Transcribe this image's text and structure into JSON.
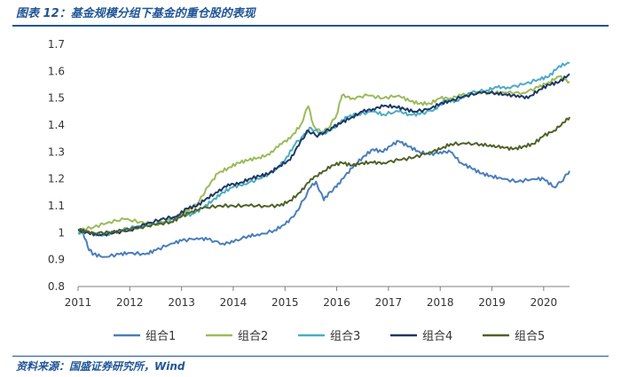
{
  "header": {
    "title": "图表 12：基金规模分组下基金的重仓股的表现"
  },
  "footer": {
    "source": "资料来源：国盛证券研究所，Wind"
  },
  "chart_data": {
    "type": "line",
    "title": "",
    "xlabel": "",
    "ylabel": "",
    "x_ticks": [
      "2011",
      "2012",
      "2013",
      "2014",
      "2015",
      "2016",
      "2017",
      "2018",
      "2019",
      "2020"
    ],
    "y_ticks": [
      "0.8",
      "0.9",
      "1",
      "1.1",
      "1.2",
      "1.3",
      "1.4",
      "1.5",
      "1.6",
      "1.7"
    ],
    "ylim": [
      0.8,
      1.7
    ],
    "xlim": [
      2011.0,
      2020.5
    ],
    "grid": false,
    "legend_position": "bottom",
    "series": [
      {
        "name": "组合1",
        "color": "#4a7ebb",
        "points": [
          [
            2011.0,
            1.01
          ],
          [
            2011.1,
            1.0
          ],
          [
            2011.2,
            0.94
          ],
          [
            2011.3,
            0.92
          ],
          [
            2011.5,
            0.91
          ],
          [
            2011.8,
            0.92
          ],
          [
            2012.0,
            0.925
          ],
          [
            2012.3,
            0.92
          ],
          [
            2012.5,
            0.935
          ],
          [
            2012.8,
            0.96
          ],
          [
            2013.0,
            0.97
          ],
          [
            2013.3,
            0.98
          ],
          [
            2013.5,
            0.975
          ],
          [
            2013.8,
            0.96
          ],
          [
            2014.0,
            0.965
          ],
          [
            2014.3,
            0.99
          ],
          [
            2014.5,
            0.99
          ],
          [
            2014.8,
            1.01
          ],
          [
            2015.0,
            1.03
          ],
          [
            2015.2,
            1.07
          ],
          [
            2015.35,
            1.12
          ],
          [
            2015.5,
            1.17
          ],
          [
            2015.6,
            1.19
          ],
          [
            2015.75,
            1.12
          ],
          [
            2015.85,
            1.15
          ],
          [
            2016.0,
            1.17
          ],
          [
            2016.1,
            1.2
          ],
          [
            2016.3,
            1.24
          ],
          [
            2016.5,
            1.28
          ],
          [
            2016.7,
            1.31
          ],
          [
            2016.9,
            1.3
          ],
          [
            2017.0,
            1.32
          ],
          [
            2017.2,
            1.34
          ],
          [
            2017.4,
            1.32
          ],
          [
            2017.6,
            1.3
          ],
          [
            2017.8,
            1.29
          ],
          [
            2018.0,
            1.3
          ],
          [
            2018.2,
            1.3
          ],
          [
            2018.4,
            1.26
          ],
          [
            2018.6,
            1.24
          ],
          [
            2018.8,
            1.22
          ],
          [
            2019.0,
            1.21
          ],
          [
            2019.2,
            1.2
          ],
          [
            2019.5,
            1.19
          ],
          [
            2019.8,
            1.2
          ],
          [
            2020.0,
            1.2
          ],
          [
            2020.2,
            1.17
          ],
          [
            2020.35,
            1.19
          ],
          [
            2020.5,
            1.23
          ]
        ]
      },
      {
        "name": "组合2",
        "color": "#9bbb59",
        "points": [
          [
            2011.0,
            1.01
          ],
          [
            2011.3,
            1.02
          ],
          [
            2011.6,
            1.04
          ],
          [
            2011.9,
            1.05
          ],
          [
            2012.2,
            1.04
          ],
          [
            2012.5,
            1.03
          ],
          [
            2012.8,
            1.05
          ],
          [
            2013.0,
            1.07
          ],
          [
            2013.2,
            1.09
          ],
          [
            2013.35,
            1.12
          ],
          [
            2013.5,
            1.17
          ],
          [
            2013.7,
            1.22
          ],
          [
            2013.9,
            1.24
          ],
          [
            2014.1,
            1.26
          ],
          [
            2014.3,
            1.27
          ],
          [
            2014.5,
            1.28
          ],
          [
            2014.7,
            1.29
          ],
          [
            2014.9,
            1.33
          ],
          [
            2015.1,
            1.35
          ],
          [
            2015.3,
            1.4
          ],
          [
            2015.45,
            1.47
          ],
          [
            2015.55,
            1.4
          ],
          [
            2015.7,
            1.37
          ],
          [
            2015.85,
            1.39
          ],
          [
            2016.0,
            1.44
          ],
          [
            2016.1,
            1.51
          ],
          [
            2016.3,
            1.5
          ],
          [
            2016.6,
            1.51
          ],
          [
            2016.9,
            1.5
          ],
          [
            2017.2,
            1.51
          ],
          [
            2017.4,
            1.49
          ],
          [
            2017.6,
            1.48
          ],
          [
            2017.8,
            1.48
          ],
          [
            2018.0,
            1.5
          ],
          [
            2018.2,
            1.5
          ],
          [
            2018.4,
            1.51
          ],
          [
            2018.7,
            1.52
          ],
          [
            2019.0,
            1.52
          ],
          [
            2019.3,
            1.52
          ],
          [
            2019.6,
            1.52
          ],
          [
            2019.9,
            1.54
          ],
          [
            2020.1,
            1.56
          ],
          [
            2020.3,
            1.58
          ],
          [
            2020.5,
            1.56
          ]
        ]
      },
      {
        "name": "组合3",
        "color": "#4bacc6",
        "points": [
          [
            2011.0,
            1.0
          ],
          [
            2011.2,
            1.0
          ],
          [
            2011.5,
            0.99
          ],
          [
            2011.8,
            1.01
          ],
          [
            2012.1,
            1.02
          ],
          [
            2012.4,
            1.03
          ],
          [
            2012.7,
            1.04
          ],
          [
            2013.0,
            1.06
          ],
          [
            2013.2,
            1.07
          ],
          [
            2013.4,
            1.09
          ],
          [
            2013.6,
            1.12
          ],
          [
            2013.8,
            1.15
          ],
          [
            2014.0,
            1.17
          ],
          [
            2014.2,
            1.18
          ],
          [
            2014.5,
            1.2
          ],
          [
            2014.8,
            1.23
          ],
          [
            2015.0,
            1.27
          ],
          [
            2015.2,
            1.33
          ],
          [
            2015.35,
            1.36
          ],
          [
            2015.5,
            1.39
          ],
          [
            2015.65,
            1.37
          ],
          [
            2015.8,
            1.37
          ],
          [
            2016.0,
            1.4
          ],
          [
            2016.2,
            1.43
          ],
          [
            2016.4,
            1.44
          ],
          [
            2016.7,
            1.45
          ],
          [
            2016.9,
            1.44
          ],
          [
            2017.2,
            1.45
          ],
          [
            2017.4,
            1.44
          ],
          [
            2017.6,
            1.44
          ],
          [
            2017.9,
            1.46
          ],
          [
            2018.1,
            1.49
          ],
          [
            2018.3,
            1.49
          ],
          [
            2018.6,
            1.52
          ],
          [
            2018.9,
            1.53
          ],
          [
            2019.1,
            1.54
          ],
          [
            2019.3,
            1.54
          ],
          [
            2019.6,
            1.55
          ],
          [
            2019.9,
            1.57
          ],
          [
            2020.1,
            1.58
          ],
          [
            2020.3,
            1.62
          ],
          [
            2020.5,
            1.63
          ]
        ]
      },
      {
        "name": "组合4",
        "color": "#1f3864",
        "points": [
          [
            2011.0,
            1.01
          ],
          [
            2011.2,
            1.0
          ],
          [
            2011.4,
            0.99
          ],
          [
            2011.7,
            1.0
          ],
          [
            2012.0,
            1.01
          ],
          [
            2012.3,
            1.03
          ],
          [
            2012.6,
            1.05
          ],
          [
            2012.9,
            1.06
          ],
          [
            2013.1,
            1.09
          ],
          [
            2013.3,
            1.1
          ],
          [
            2013.5,
            1.13
          ],
          [
            2013.7,
            1.15
          ],
          [
            2013.9,
            1.18
          ],
          [
            2014.1,
            1.18
          ],
          [
            2014.3,
            1.2
          ],
          [
            2014.5,
            1.21
          ],
          [
            2014.7,
            1.22
          ],
          [
            2014.9,
            1.25
          ],
          [
            2015.1,
            1.27
          ],
          [
            2015.3,
            1.34
          ],
          [
            2015.45,
            1.38
          ],
          [
            2015.6,
            1.36
          ],
          [
            2015.75,
            1.37
          ],
          [
            2015.9,
            1.39
          ],
          [
            2016.1,
            1.41
          ],
          [
            2016.3,
            1.43
          ],
          [
            2016.5,
            1.45
          ],
          [
            2016.7,
            1.46
          ],
          [
            2016.9,
            1.47
          ],
          [
            2017.1,
            1.47
          ],
          [
            2017.3,
            1.46
          ],
          [
            2017.5,
            1.45
          ],
          [
            2017.8,
            1.46
          ],
          [
            2018.0,
            1.48
          ],
          [
            2018.2,
            1.49
          ],
          [
            2018.5,
            1.51
          ],
          [
            2018.8,
            1.52
          ],
          [
            2019.1,
            1.52
          ],
          [
            2019.3,
            1.51
          ],
          [
            2019.5,
            1.51
          ],
          [
            2019.7,
            1.5
          ],
          [
            2019.9,
            1.53
          ],
          [
            2020.1,
            1.55
          ],
          [
            2020.3,
            1.56
          ],
          [
            2020.5,
            1.59
          ]
        ]
      },
      {
        "name": "组合5",
        "color": "#4f6228",
        "points": [
          [
            2011.0,
            1.01
          ],
          [
            2011.3,
            1.0
          ],
          [
            2011.6,
            1.0
          ],
          [
            2011.9,
            1.01
          ],
          [
            2012.2,
            1.02
          ],
          [
            2012.5,
            1.03
          ],
          [
            2012.8,
            1.04
          ],
          [
            2013.0,
            1.06
          ],
          [
            2013.2,
            1.08
          ],
          [
            2013.4,
            1.09
          ],
          [
            2013.7,
            1.1
          ],
          [
            2014.0,
            1.1
          ],
          [
            2014.3,
            1.1
          ],
          [
            2014.6,
            1.1
          ],
          [
            2014.9,
            1.1
          ],
          [
            2015.1,
            1.12
          ],
          [
            2015.3,
            1.15
          ],
          [
            2015.5,
            1.2
          ],
          [
            2015.7,
            1.22
          ],
          [
            2015.9,
            1.25
          ],
          [
            2016.1,
            1.26
          ],
          [
            2016.3,
            1.25
          ],
          [
            2016.5,
            1.26
          ],
          [
            2016.7,
            1.26
          ],
          [
            2016.9,
            1.26
          ],
          [
            2017.2,
            1.27
          ],
          [
            2017.5,
            1.28
          ],
          [
            2017.8,
            1.3
          ],
          [
            2018.0,
            1.31
          ],
          [
            2018.2,
            1.33
          ],
          [
            2018.5,
            1.33
          ],
          [
            2018.8,
            1.33
          ],
          [
            2019.0,
            1.32
          ],
          [
            2019.2,
            1.32
          ],
          [
            2019.4,
            1.31
          ],
          [
            2019.6,
            1.32
          ],
          [
            2019.8,
            1.33
          ],
          [
            2020.0,
            1.36
          ],
          [
            2020.2,
            1.38
          ],
          [
            2020.4,
            1.41
          ],
          [
            2020.5,
            1.43
          ]
        ]
      }
    ]
  }
}
